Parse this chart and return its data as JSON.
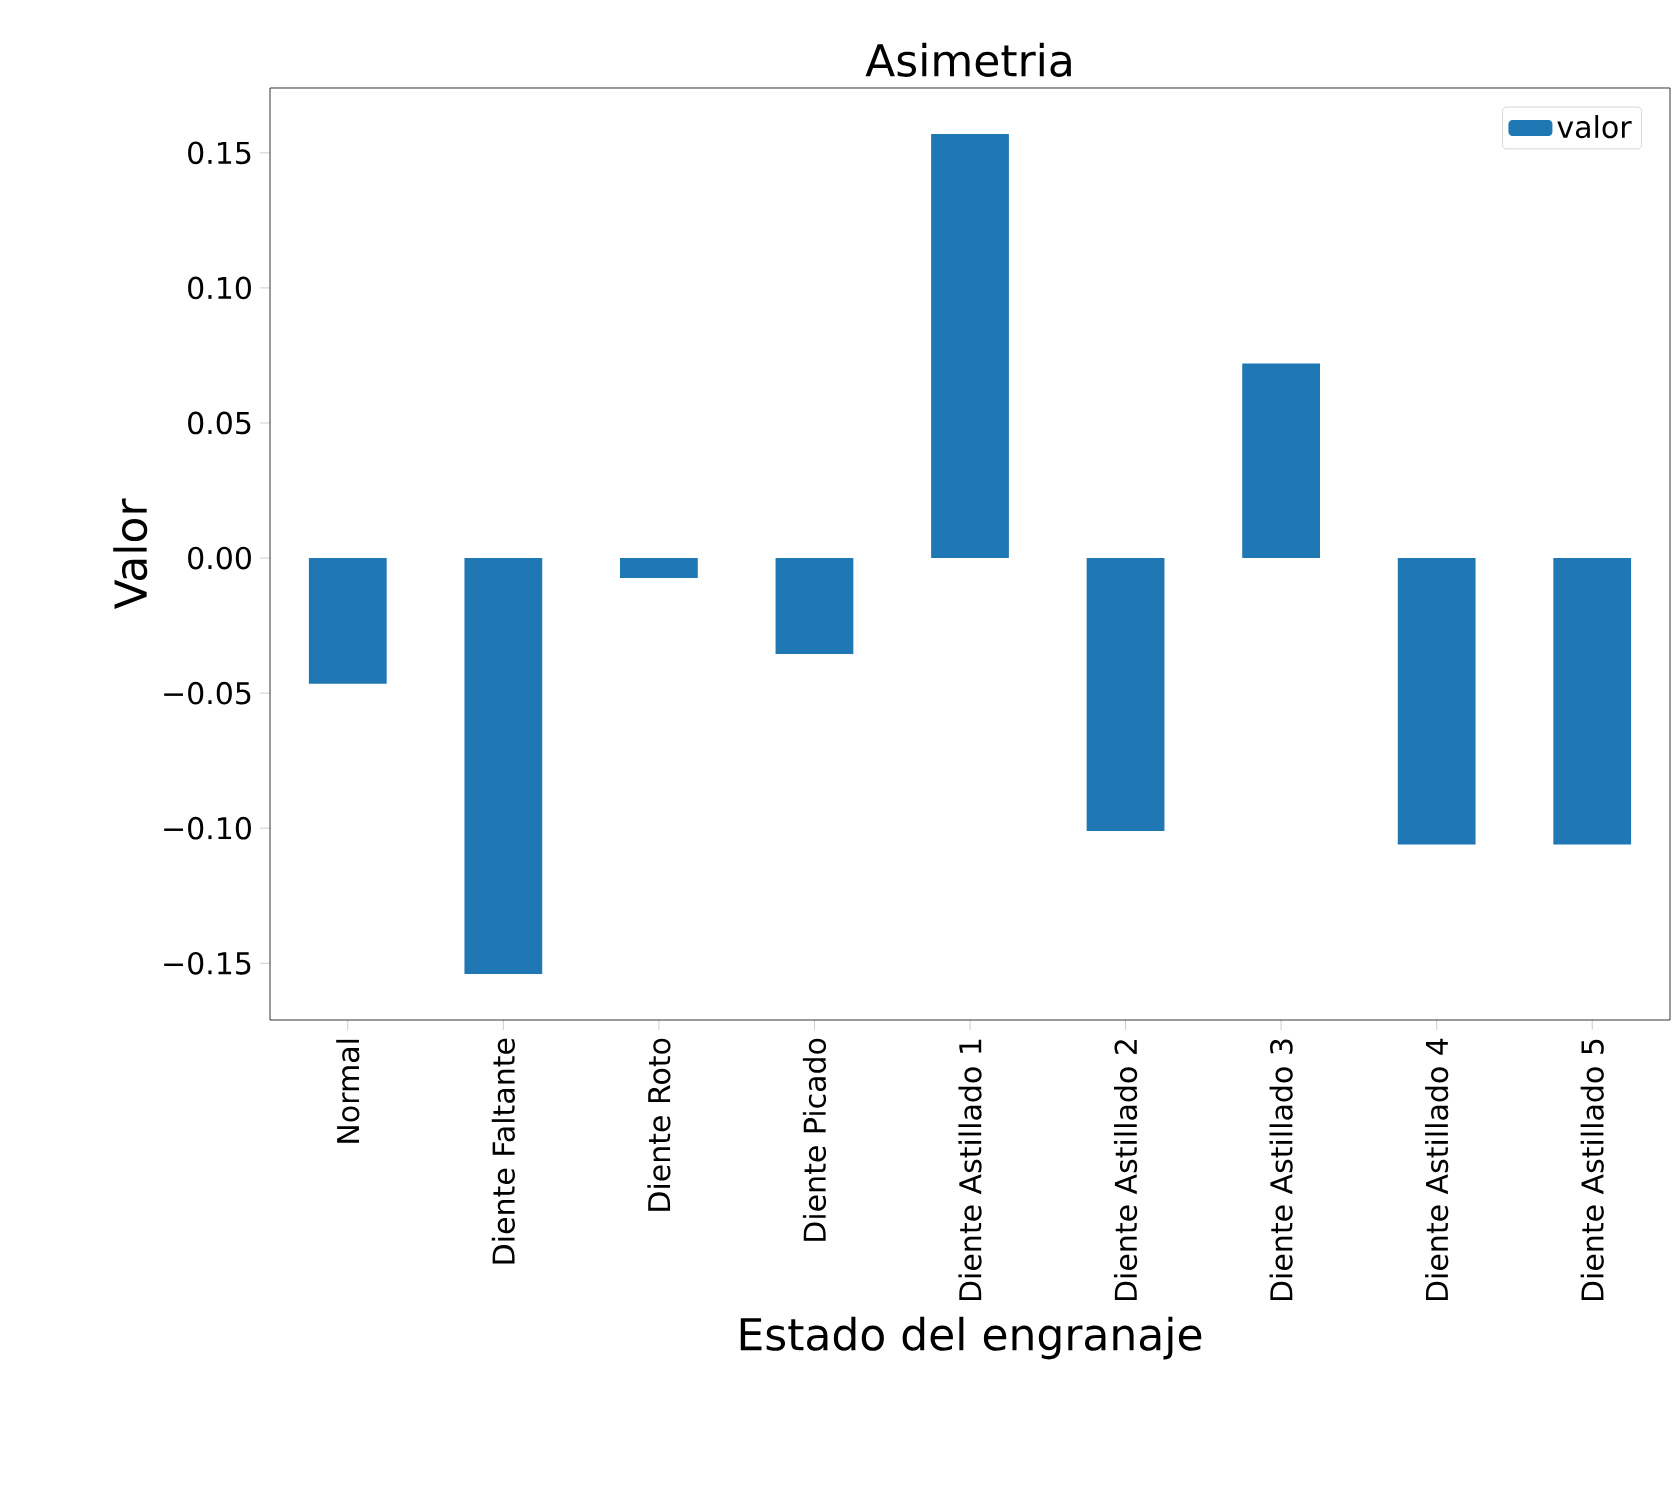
{
  "chart_data": {
    "type": "bar",
    "title": "Asimetria",
    "xlabel": "Estado del engranaje",
    "ylabel": "Valor",
    "categories": [
      "Normal",
      "Diente Faltante",
      "Diente Roto",
      "Diente Picado",
      "Diente Astillado 1",
      "Diente Astillado 2",
      "Diente Astillado 3",
      "Diente Astillado 4",
      "Diente Astillado 5"
    ],
    "series": [
      {
        "name": "valor",
        "color": "#1f77b4",
        "values": [
          -0.0465,
          -0.154,
          -0.0074,
          -0.0355,
          0.157,
          -0.101,
          0.072,
          -0.106,
          -0.106
        ]
      }
    ],
    "ylim": [
      -0.171,
      0.174
    ],
    "yticks": [
      {
        "value": -0.15,
        "label": "−0.15"
      },
      {
        "value": -0.1,
        "label": "−0.10"
      },
      {
        "value": -0.05,
        "label": "−0.05"
      },
      {
        "value": 0,
        "label": "0.00"
      },
      {
        "value": 0.05,
        "label": "0.05"
      },
      {
        "value": 0.1,
        "label": "0.10"
      },
      {
        "value": 0.15,
        "label": "0.15"
      }
    ],
    "legend": "top right",
    "grid": false
  }
}
